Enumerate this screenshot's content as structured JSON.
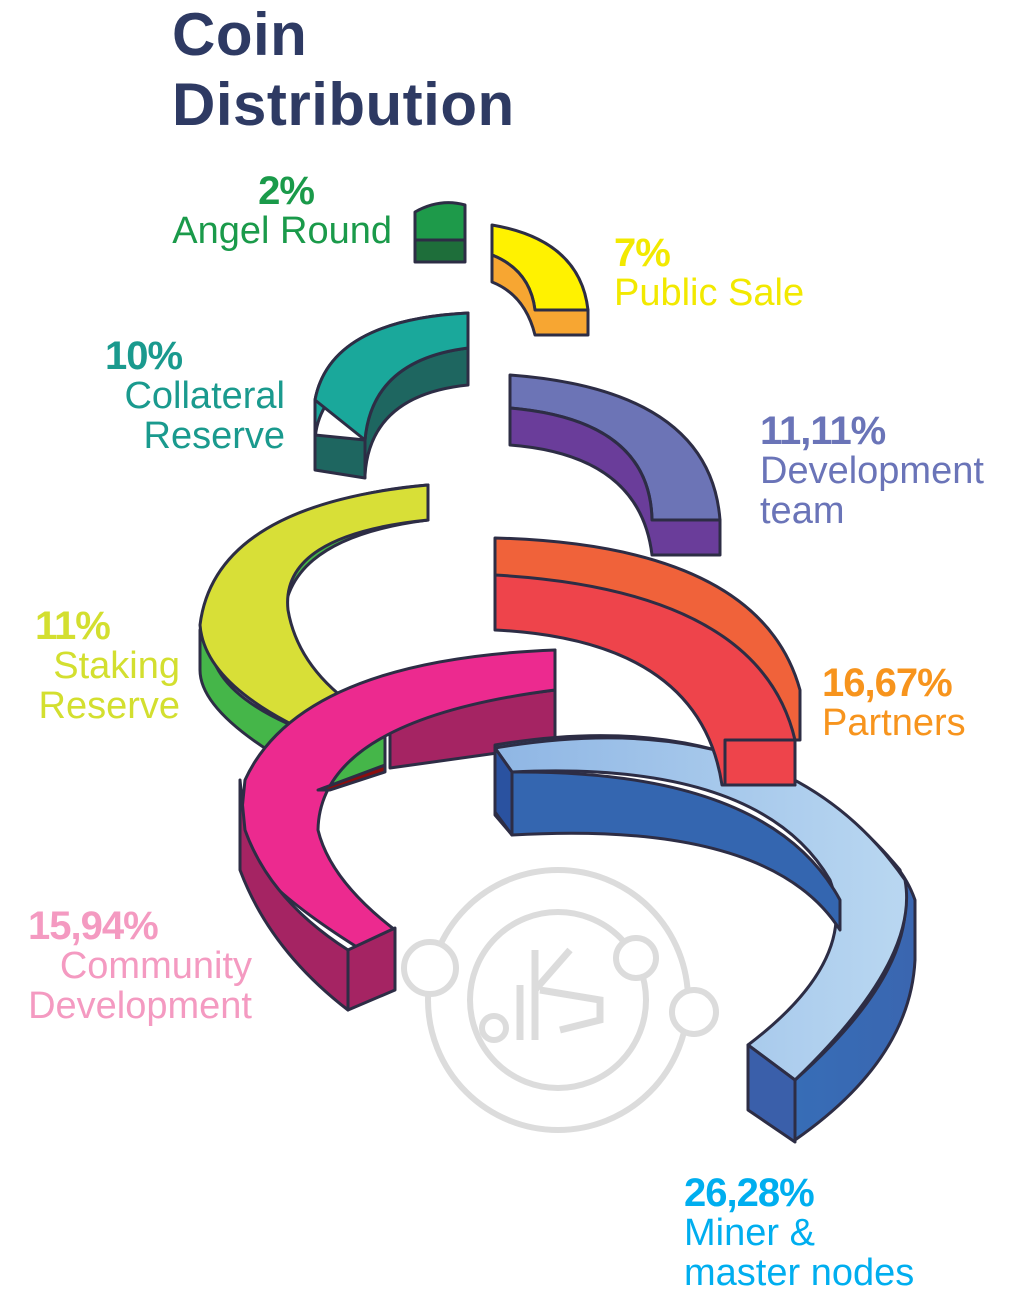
{
  "title_line1": "Coin",
  "title_line2": "Distribution",
  "chart_data": {
    "type": "pie",
    "title": "Coin Distribution",
    "slices": [
      {
        "label_lines": [
          "Angel Round"
        ],
        "percent_text": "2%",
        "value": 2,
        "color": "#1a9a4a"
      },
      {
        "label_lines": [
          "Public Sale"
        ],
        "percent_text": "7%",
        "value": 7,
        "color": "#fff200"
      },
      {
        "label_lines": [
          "Collateral",
          "Reserve"
        ],
        "percent_text": "10%",
        "value": 10,
        "color": "#1a9a8e"
      },
      {
        "label_lines": [
          "Development",
          "team"
        ],
        "percent_text": "11,11%",
        "value": 11.11,
        "color": "#6a74b8"
      },
      {
        "label_lines": [
          "Staking",
          "Reserve"
        ],
        "percent_text": "11%",
        "value": 11,
        "color": "#d3df2f"
      },
      {
        "label_lines": [
          "Partners"
        ],
        "percent_text": "16,67%",
        "value": 16.67,
        "color": "#f7941d"
      },
      {
        "label_lines": [
          "Community",
          "Development"
        ],
        "percent_text": "15,94%",
        "value": 15.94,
        "color": "#f49ac1"
      },
      {
        "label_lines": [
          "Miner &",
          "master nodes"
        ],
        "percent_text": "26,28%",
        "value": 26.28,
        "color": "#00aeef"
      }
    ]
  }
}
